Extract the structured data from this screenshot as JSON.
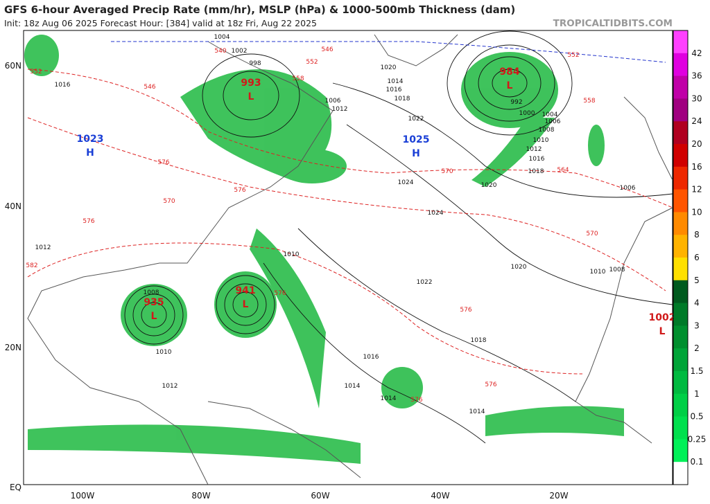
{
  "header": {
    "title": "GFS 6-hour Averaged Precip Rate (mm/hr), MSLP (hPa) & 1000-500mb Thickness (dam)",
    "subtitle": "Init: 18z Aug 06 2025   Forecast Hour: [384]   valid at 18z Fri, Aug 22 2025",
    "site": "TROPICALTIDBITS.COM"
  },
  "map": {
    "lon_labels": [
      "100W",
      "80W",
      "60W",
      "40W",
      "20W"
    ],
    "lat_labels": [
      "60N",
      "40N",
      "20N",
      "EQ"
    ],
    "centers": [
      {
        "kind": "H",
        "value": "1023"
      },
      {
        "kind": "L",
        "value": "993"
      },
      {
        "kind": "L",
        "value": "984"
      },
      {
        "kind": "H",
        "value": "1025"
      },
      {
        "kind": "L",
        "value": "935"
      },
      {
        "kind": "L",
        "value": "941"
      },
      {
        "kind": "L",
        "value": "1002"
      }
    ],
    "isobar_labels": [
      "1004",
      "1002",
      "998",
      "1014",
      "1018",
      "1020",
      "1012",
      "1016",
      "1022",
      "1024",
      "1024",
      "1020",
      "1022",
      "1018",
      "1016",
      "1014",
      "1010",
      "1006",
      "1008",
      "1010",
      "1012",
      "1014",
      "1014",
      "1016",
      "992",
      "1000",
      "1004",
      "1006",
      "1008",
      "1010",
      "1012",
      "1016",
      "1018",
      "1020",
      "1010",
      "1008",
      "1006",
      "1012"
    ],
    "thickness_labels": [
      "540",
      "546",
      "552",
      "558",
      "546",
      "552",
      "570",
      "576",
      "570",
      "576",
      "582",
      "576",
      "576",
      "576",
      "576",
      "564",
      "570",
      "552",
      "558",
      "576"
    ]
  },
  "colorbar": {
    "labels": [
      "42",
      "36",
      "30",
      "24",
      "20",
      "16",
      "12",
      "10",
      "8",
      "6",
      "5",
      "4",
      "3",
      "2",
      "1.5",
      "1",
      "0.5",
      "0.25",
      "0.1"
    ],
    "colors": [
      "#ff40ff",
      "#e000e0",
      "#c000a8",
      "#a00080",
      "#b00020",
      "#d00000",
      "#ee2800",
      "#ff5500",
      "#ff8a00",
      "#ffb300",
      "#ffe000",
      "#005a1e",
      "#007a28",
      "#008f2e",
      "#00a438",
      "#00ba40",
      "#00cf46",
      "#00e04e",
      "#00f058",
      "#ffffff"
    ]
  }
}
